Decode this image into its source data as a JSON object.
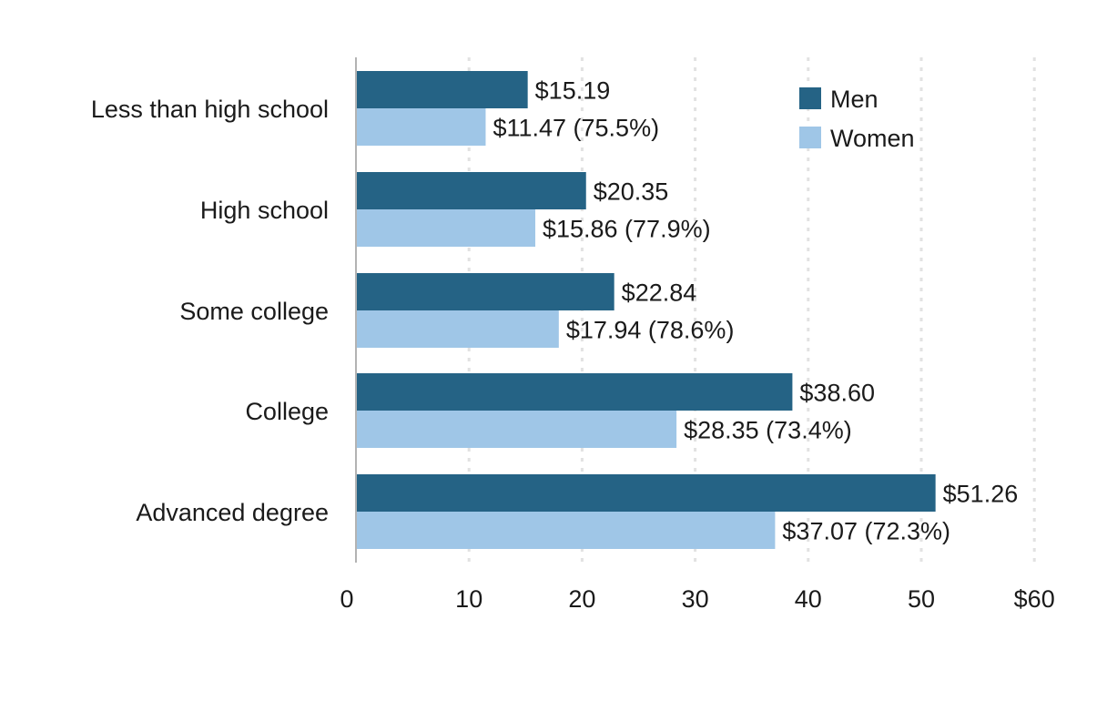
{
  "chart_data": {
    "type": "bar",
    "orientation": "horizontal",
    "title": "",
    "xlabel": "",
    "ylabel": "",
    "categories": [
      "Less than high school",
      "High school",
      "Some college",
      "College",
      "Advanced degree"
    ],
    "series": [
      {
        "name": "Men",
        "color": "#256385",
        "values": [
          15.19,
          20.35,
          22.84,
          38.6,
          51.26
        ],
        "labels": [
          "$15.19",
          "$20.35",
          "$22.84",
          "$38.60",
          "$51.26"
        ]
      },
      {
        "name": "Women",
        "color": "#9fc6e7",
        "values": [
          11.47,
          15.86,
          17.94,
          28.35,
          37.07
        ],
        "labels": [
          "$11.47 (75.5%)",
          "$15.86 (77.9%)",
          "$17.94 (78.6%)",
          "$28.35 (73.4%)",
          "$37.07 (72.3%)"
        ]
      }
    ],
    "xlim": [
      0,
      60
    ],
    "xticks": [
      0,
      10,
      20,
      30,
      40,
      50,
      60
    ],
    "xtick_labels": [
      "0",
      "10",
      "20",
      "30",
      "40",
      "50",
      "$60"
    ],
    "grid": "vertical dotted",
    "legend_position": "top-right",
    "axis_color": "#b3b3b3",
    "grid_color": "#e2e2e2"
  }
}
